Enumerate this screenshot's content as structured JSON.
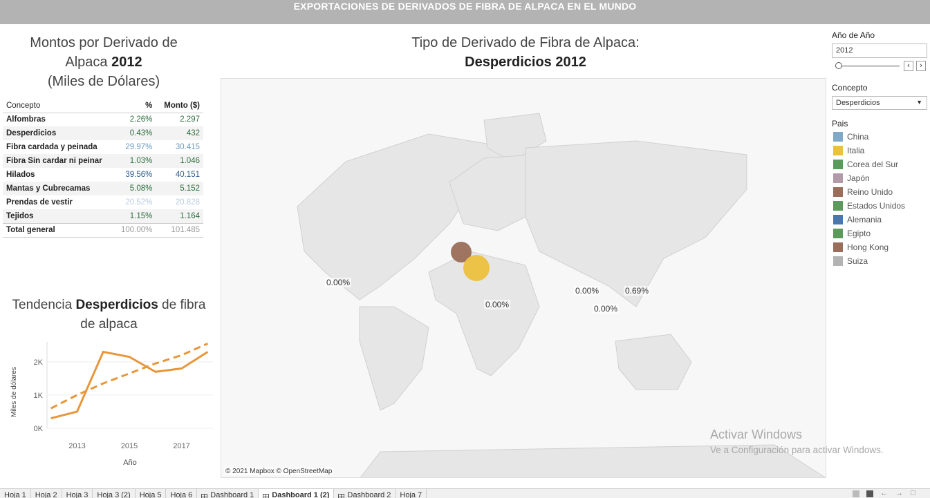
{
  "header": {
    "title": "EXPORTACIONES DE DERIVADOS DE FIBRA DE ALPACA EN EL MUNDO"
  },
  "left_title": {
    "line1": "Montos por Derivado de",
    "line2_pre": "Alpaca ",
    "year": "2012",
    "line3": "(Miles de Dólares)"
  },
  "table": {
    "headers": {
      "concept": "Concepto",
      "pct": "%",
      "amount": "Monto ($)"
    },
    "rows": [
      {
        "concept": "Alfombras",
        "pct": "2.26%",
        "amount": "2.297",
        "color": "#2e6e3e"
      },
      {
        "concept": "Desperdicios",
        "pct": "0.43%",
        "amount": "432",
        "color": "#2e6e3e"
      },
      {
        "concept": "Fibra cardada y peinada",
        "pct": "29.97%",
        "amount": "30.415",
        "color": "#6b9bc3"
      },
      {
        "concept": "Fibra Sin cardar ni peinar",
        "pct": "1.03%",
        "amount": "1.046",
        "color": "#2e6e3e"
      },
      {
        "concept": "Hilados",
        "pct": "39.56%",
        "amount": "40.151",
        "color": "#2d5a8a"
      },
      {
        "concept": "Mantas y Cubrecamas",
        "pct": "5.08%",
        "amount": "5.152",
        "color": "#2e6e3e"
      },
      {
        "concept": "Prendas de vestir",
        "pct": "20.52%",
        "amount": "20.828",
        "color": "#b8cbe0"
      },
      {
        "concept": "Tejidos",
        "pct": "1.15%",
        "amount": "1.164",
        "color": "#2e6e3e"
      },
      {
        "concept": "Total general",
        "pct": "100.00%",
        "amount": "101.485",
        "color": "#999999"
      }
    ]
  },
  "trend_title": {
    "pre": "Tendencia ",
    "bold": "Desperdicios",
    "post": " de fibra",
    "line2": "de alpaca"
  },
  "chart_data": {
    "type": "line",
    "x": [
      2012,
      2013,
      2014,
      2015,
      2016,
      2017,
      2018
    ],
    "series": [
      {
        "values": [
          300,
          500,
          2300,
          2150,
          1700,
          1800,
          2300
        ],
        "style": "solid"
      },
      {
        "values": [
          600,
          1000,
          1350,
          1650,
          1950,
          2200,
          2550
        ],
        "style": "dashed"
      }
    ],
    "xticks": [
      "2013",
      "2015",
      "2017"
    ],
    "yticks": [
      "0K",
      "1K",
      "2K"
    ],
    "ylabel": "Miles de dólares",
    "xlabel": "Año",
    "ylim": [
      0,
      2600
    ],
    "color": "#e8963a"
  },
  "map": {
    "title_line1": "Tipo de Derivado de Fibra de Alpaca:",
    "title_line2": "Desperdicios 2012",
    "attribution": "© 2021 Mapbox © OpenStreetMap",
    "labels": [
      {
        "text": "0.00%",
        "region": "usa"
      },
      {
        "text": "0.00%",
        "region": "egypt"
      },
      {
        "text": "0.00%",
        "region": "india"
      },
      {
        "text": "0.00%",
        "region": "hongkong"
      },
      {
        "text": "0.69%",
        "region": "korea"
      }
    ]
  },
  "watermark": {
    "line1": "Activar Windows",
    "line2": "Ve a Configuración para activar Windows."
  },
  "filters": {
    "year_label": "Año de Año",
    "year_value": "2012",
    "concept_label": "Concepto",
    "concept_value": "Desperdicios",
    "country_label": "Pais"
  },
  "legend": [
    {
      "name": "China",
      "color": "#7fa9c7"
    },
    {
      "name": "Italia",
      "color": "#ecc13e"
    },
    {
      "name": "Corea del Sur",
      "color": "#5a9a5a"
    },
    {
      "name": "Japón",
      "color": "#b39aa8"
    },
    {
      "name": "Reino Unido",
      "color": "#9a6e5a"
    },
    {
      "name": "Estados Unidos",
      "color": "#5a9a5a"
    },
    {
      "name": "Alemania",
      "color": "#4a78ad"
    },
    {
      "name": "Egipto",
      "color": "#5a9a5a"
    },
    {
      "name": "Hong Kong",
      "color": "#9a6e5a"
    },
    {
      "name": "Suiza",
      "color": "#b3b3b3"
    }
  ],
  "tabs": [
    "Hoja 1",
    "Hoja 2",
    "Hoja 3",
    "Hoja 3 (2)",
    "Hoja 5",
    "Hoja 6",
    "Dashboard 1",
    "Dashboard 1 (2)",
    "Dashboard 2",
    "Hoja 7"
  ],
  "active_tab": 7
}
